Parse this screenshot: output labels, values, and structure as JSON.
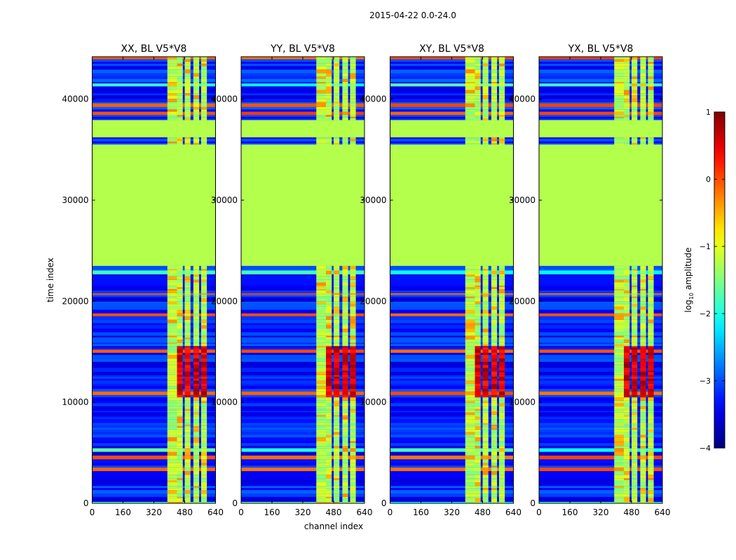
{
  "chart_data": {
    "type": "heatmap",
    "suptitle": "2015-04-22 0.0-24.0",
    "xlabel": "channel index",
    "ylabel": "time index",
    "xlim": [
      0,
      640
    ],
    "ylim": [
      0,
      44200
    ],
    "xticks": [
      "0",
      "160",
      "320",
      "480",
      "640"
    ],
    "yticks": [
      "0",
      "10000",
      "20000",
      "30000",
      "40000"
    ],
    "xtick_values": [
      0,
      160,
      320,
      480,
      640
    ],
    "ytick_values": [
      0,
      10000,
      20000,
      30000,
      40000
    ],
    "panels": [
      {
        "title": "XX, BL V5*V8"
      },
      {
        "title": "YY, BL V5*V8"
      },
      {
        "title": "XY, BL V5*V8"
      },
      {
        "title": "YX, BL V5*V8"
      }
    ],
    "colorbar": {
      "label_prefix": "log",
      "label_sub": "10",
      "label_suffix": " amplitude",
      "min": -4,
      "max": 1,
      "ticks": [
        "1",
        "0",
        "−1",
        "−2",
        "−3",
        "−4"
      ],
      "tick_values": [
        1,
        0,
        -1,
        -2,
        -3,
        -4
      ]
    },
    "background_value": -1.25,
    "flagged_time_ranges": [
      [
        23500,
        35500
      ],
      [
        36300,
        37800
      ]
    ],
    "active_channel_ranges": [
      [
        390,
        440
      ],
      [
        440,
        470
      ],
      [
        480,
        510
      ],
      [
        525,
        555
      ],
      [
        565,
        595
      ]
    ],
    "hot_time_ranges": [
      [
        10500,
        15500
      ]
    ]
  }
}
